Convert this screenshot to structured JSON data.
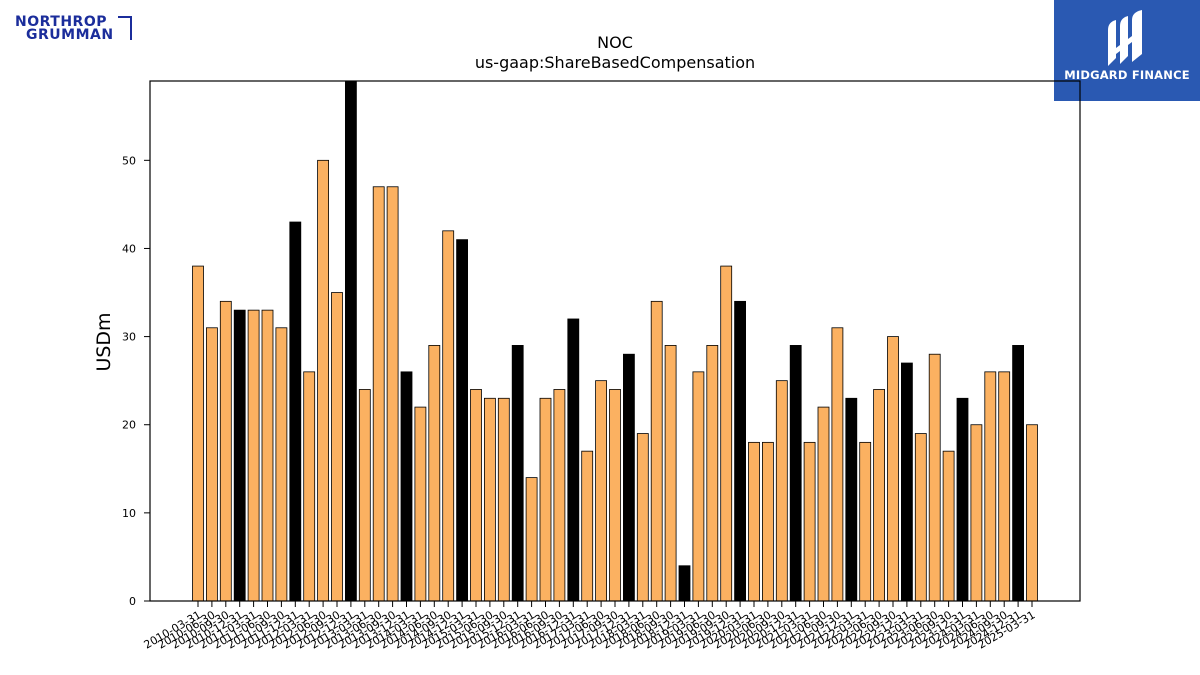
{
  "logos": {
    "left_line1": "NORTHROP",
    "left_line2": "GRUMMAN",
    "left_color": "#1b2d9b",
    "right_text": "MIDGARD FINANCE",
    "right_bg": "#2a59b2"
  },
  "chart_data": {
    "type": "bar",
    "title": "NOC",
    "subtitle": "us-gaap:ShareBasedCompensation",
    "ylabel": "USDm",
    "xlabel": "",
    "ylim": [
      0,
      59
    ],
    "yticks": [
      0,
      10,
      20,
      30,
      40,
      50
    ],
    "grid": false,
    "colors": {
      "quarter": "#fbb161",
      "annual": "#000000",
      "edge": "#000000"
    },
    "categories": [
      "2010-03-31",
      "2010-06-30",
      "2010-09-30",
      "2010-12-31",
      "2011-03-31",
      "2011-06-30",
      "2011-09-30",
      "2011-12-31",
      "2012-03-31",
      "2012-06-30",
      "2012-09-30",
      "2012-12-31",
      "2013-03-31",
      "2013-06-30",
      "2013-09-30",
      "2013-12-31",
      "2014-03-31",
      "2014-06-30",
      "2014-09-30",
      "2014-12-31",
      "2015-03-31",
      "2015-06-30",
      "2015-09-30",
      "2015-12-31",
      "2016-03-31",
      "2016-06-30",
      "2016-09-30",
      "2016-12-31",
      "2017-03-31",
      "2017-06-30",
      "2017-09-30",
      "2017-12-31",
      "2018-03-31",
      "2018-06-30",
      "2018-09-30",
      "2018-12-31",
      "2019-03-31",
      "2019-06-30",
      "2019-09-30",
      "2019-12-31",
      "2020-03-31",
      "2020-06-30",
      "2020-09-30",
      "2020-12-31",
      "2021-03-31",
      "2021-06-30",
      "2021-09-30",
      "2021-12-31",
      "2022-03-31",
      "2022-06-30",
      "2022-09-30",
      "2022-12-31",
      "2023-03-31",
      "2023-06-30",
      "2023-09-30",
      "2023-12-31",
      "2024-03-31",
      "2024-06-30",
      "2024-09-30",
      "2024-12-31",
      "2025-03-31"
    ],
    "tick_labels": [
      "2010-03-31",
      "2010-06-30",
      "2010-09-30",
      "2010-12-31",
      "2011-03-31",
      "2011-06-30",
      "2011-09-30",
      "2011-12-31",
      "2012-03-31",
      "2012-06-30",
      "2012-09-30",
      "2012-12-31",
      "2013-03-31",
      "2013-06-30",
      "2013-09-30",
      "2013-12-31",
      "2014-03-31",
      "2014-06-30",
      "2014-09-30",
      "2014-12-31",
      "2015-03-31",
      "2015-06-30",
      "2015-09-30",
      "2015-12-31",
      "2016-03-31",
      "2016-06-30",
      "2016-09-30",
      "2016-12-31",
      "2017-03-31",
      "2017-06-30",
      "2017-09-30",
      "2017-12-31",
      "2018-03-31",
      "2018-06-30",
      "2018-09-30",
      "2018-12-31",
      "2019-03-31",
      "2019-06-30",
      "2019-09-30",
      "2019-12-31",
      "2020-03-31",
      "2020-06-30",
      "2020-09-30",
      "2020-12-31",
      "2021-03-31",
      "2021-06-30",
      "2021-09-30",
      "2021-12-31",
      "2022-03-31",
      "2022-06-30",
      "2022-09-30",
      "2022-12-31",
      "2023-03-31",
      "2023-06-30",
      "2023-09-30",
      "2023-12-31",
      "2024-03-31",
      "2024-06-30",
      "2024-09-30",
      "2024-12-31",
      "2025-03-31"
    ],
    "values": [
      38,
      31,
      34,
      33,
      33,
      33,
      31,
      43,
      26,
      50,
      35,
      59,
      24,
      47,
      47,
      26,
      22,
      29,
      42,
      41,
      24,
      23,
      23,
      29,
      14,
      23,
      24,
      32,
      17,
      25,
      24,
      28,
      19,
      34,
      29,
      4,
      26,
      29,
      38,
      34,
      18,
      18,
      25,
      29,
      18,
      22,
      31,
      23,
      18,
      24,
      30,
      27,
      19,
      28,
      17,
      23,
      20,
      26,
      26,
      29,
      20
    ],
    "annual": [
      false,
      false,
      false,
      true,
      false,
      false,
      false,
      true,
      false,
      false,
      false,
      true,
      false,
      false,
      false,
      true,
      false,
      false,
      false,
      true,
      false,
      false,
      false,
      true,
      false,
      false,
      false,
      true,
      false,
      false,
      false,
      true,
      false,
      false,
      false,
      true,
      false,
      false,
      false,
      true,
      false,
      false,
      false,
      true,
      false,
      false,
      false,
      true,
      false,
      false,
      false,
      true,
      false,
      false,
      false,
      true,
      false,
      false,
      false,
      true,
      false
    ]
  }
}
